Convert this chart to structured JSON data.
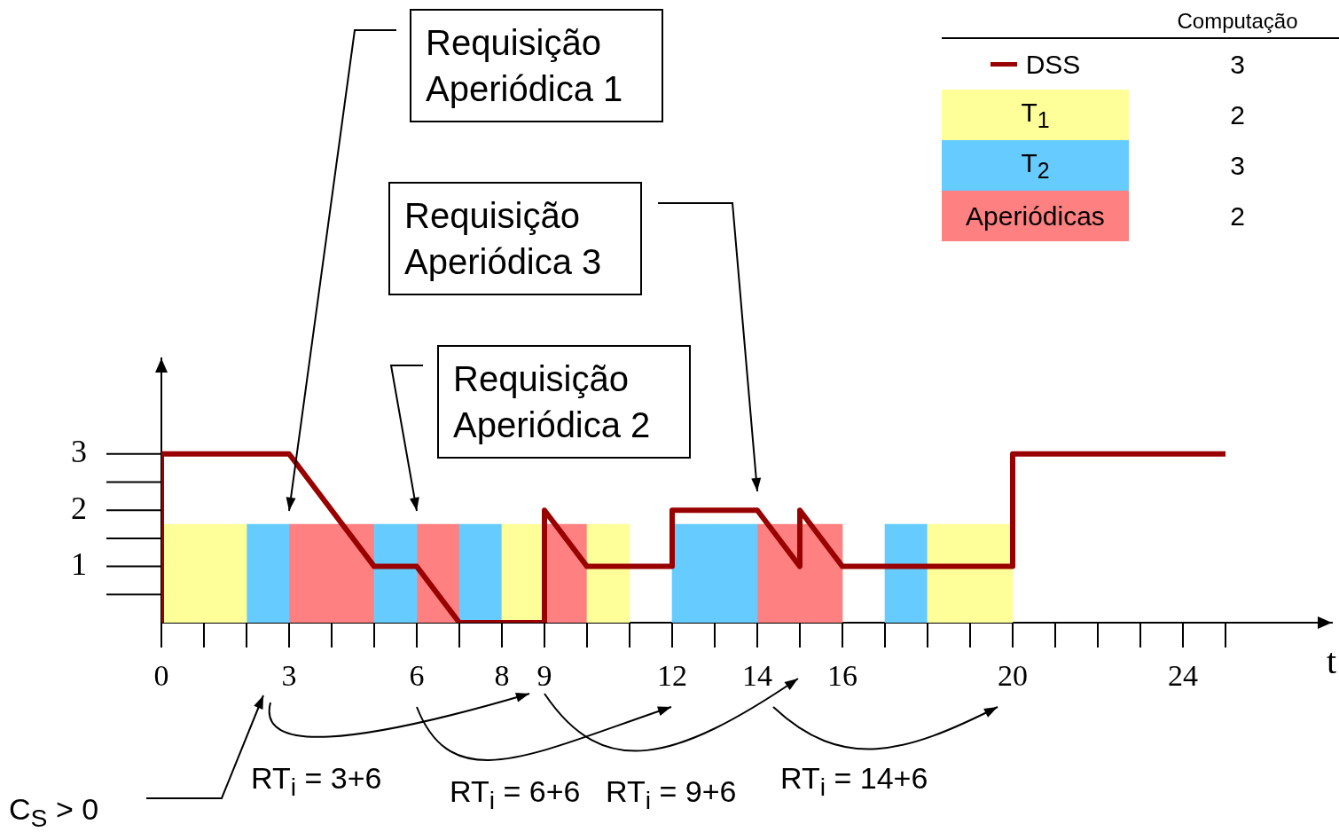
{
  "chart_data": {
    "type": "bar",
    "xlabel": "t",
    "legend_title": "Computação",
    "legend": "top right",
    "grid": false,
    "marker": "none",
    "xlim": [
      0,
      27.5
    ],
    "xticks": [
      0,
      3,
      6,
      8,
      9,
      12,
      14,
      16,
      20,
      24
    ],
    "ylim": [
      0,
      4.7
    ],
    "yticks": [
      1,
      2,
      3
    ],
    "series": [
      {
        "name": "DSS",
        "type": "line",
        "color": "#990000",
        "x": [
          0,
          0,
          3,
          5,
          6,
          7,
          9,
          9,
          10,
          12,
          12,
          14,
          15,
          15,
          16,
          20,
          20,
          25
        ],
        "values": [
          0,
          3,
          3,
          1,
          1,
          0,
          0,
          2,
          1,
          1,
          2,
          2,
          1,
          2,
          1,
          1,
          3,
          3
        ]
      },
      {
        "name": "T$_{1}$",
        "color": "#ffff99",
        "x": [
          0.5,
          1.5,
          8.5,
          10.5,
          18.5,
          19.5
        ],
        "values": [
          1.75,
          1.75,
          1.75,
          1.75,
          1.75,
          1.75
        ]
      },
      {
        "name": "T$_{2}$",
        "color": "#66ccff",
        "x": [
          2.5,
          5.5,
          7.5,
          12.5,
          13.5,
          17.5
        ],
        "values": [
          1.75,
          1.75,
          1.75,
          1.75,
          1.75,
          1.75
        ]
      },
      {
        "name": "Aperiódicas",
        "color": "#ff8080",
        "x": [
          3.5,
          4.5,
          6.5,
          9.5,
          14.5,
          15.5
        ],
        "values": [
          1.75,
          1.75,
          1.75,
          1.75,
          1.75,
          1.75
        ]
      }
    ],
    "annotations": [
      "Requisição Aperiódica 1",
      "Requisição Aperiódica 2",
      "Requisição Aperiódica 3",
      "RT$_{i}$ = 3+6",
      "RT$_{i}$ = 6+6",
      "RT$_{i}$ = 9+6",
      "RT$_{i}$ = 14+6",
      "C$_{S}$ > 0",
      "3",
      "2",
      "3",
      "2"
    ]
  }
}
